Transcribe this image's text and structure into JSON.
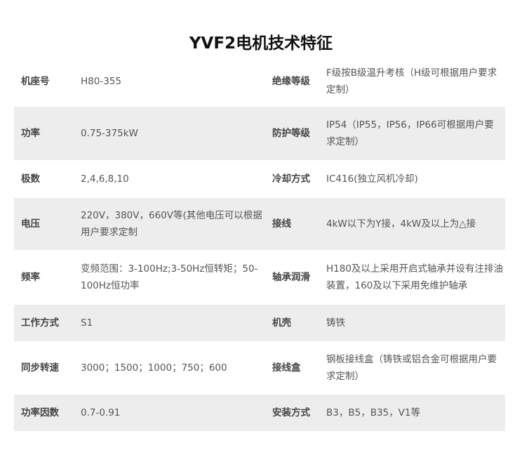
{
  "title": "YVF2电机技术特征",
  "rows": [
    {
      "k1": "机座号",
      "v1": "H80-355",
      "k2": "绝缘等级",
      "v2": "F级按B级温升考核（H级可根据用户要求定制）"
    },
    {
      "k1": "功率",
      "v1": "0.75-375kW",
      "k2": "防护等级",
      "v2": "IP54（IP55，IP56，IP66可根据用户要求定制）"
    },
    {
      "k1": "极数",
      "v1": "2,4,6,8,10",
      "k2": "冷却方式",
      "v2": "IC416(独立风机冷却)"
    },
    {
      "k1": "电压",
      "v1": "220V，380V，660V等(其他电压可以根据用户要求定制",
      "k2": "接线",
      "v2": "4kW以下为Y接，4kW及以上为△接"
    },
    {
      "k1": "频率",
      "v1": "变频范围：3-100Hz;3-50Hz恒转矩；50-100Hz恒功率",
      "k2": "轴承润滑",
      "v2": "H180及以上采用开启式轴承并设有注排油装置，160及以下采用免维护轴承"
    },
    {
      "k1": "工作方式",
      "v1": "S1",
      "k2": "机壳",
      "v2": "铸铁"
    },
    {
      "k1": "同步转速",
      "v1": "3000；1500；1000；750；600",
      "k2": "接线盒",
      "v2": "钢板接线盒（铸铁或铝合金可根据用户要求定制）"
    },
    {
      "k1": "功率因数",
      "v1": "0.7-0.91",
      "k2": "安装方式",
      "v2": "B3，B5，B35，V1等"
    }
  ]
}
